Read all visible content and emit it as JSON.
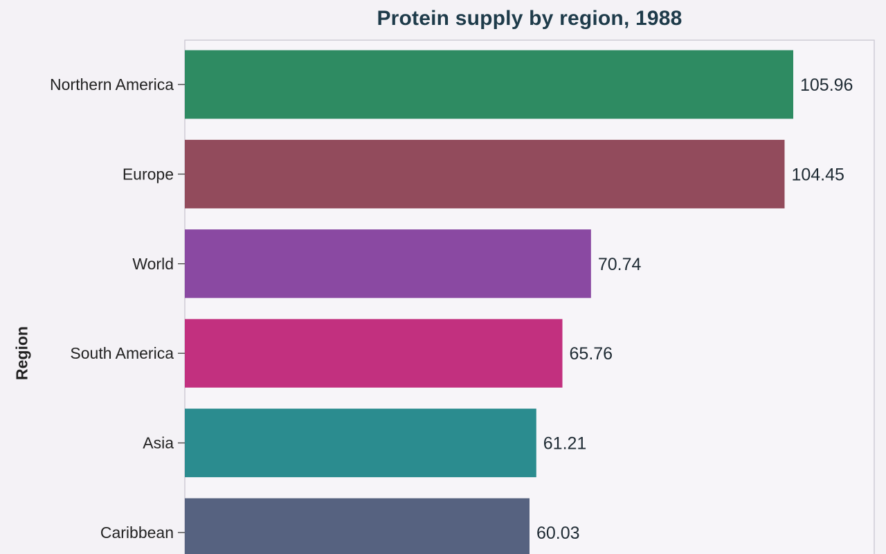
{
  "chart_data": {
    "type": "bar",
    "orientation": "horizontal",
    "title": "Protein supply by region, 1988",
    "ylabel": "Region",
    "xlabel": "",
    "categories": [
      "Northern America",
      "Europe",
      "World",
      "South America",
      "Asia",
      "Caribbean"
    ],
    "values": [
      105.96,
      104.45,
      70.74,
      65.76,
      61.21,
      60.03
    ],
    "value_labels": [
      "105.96",
      "104.45",
      "70.74",
      "65.76",
      "61.21",
      "60.03"
    ],
    "colors": [
      "#2e8b62",
      "#924b5c",
      "#8a49a2",
      "#c2307f",
      "#2b8c8f",
      "#566280"
    ],
    "xlim": [
      0,
      120
    ],
    "grid": false,
    "legend": "none"
  }
}
